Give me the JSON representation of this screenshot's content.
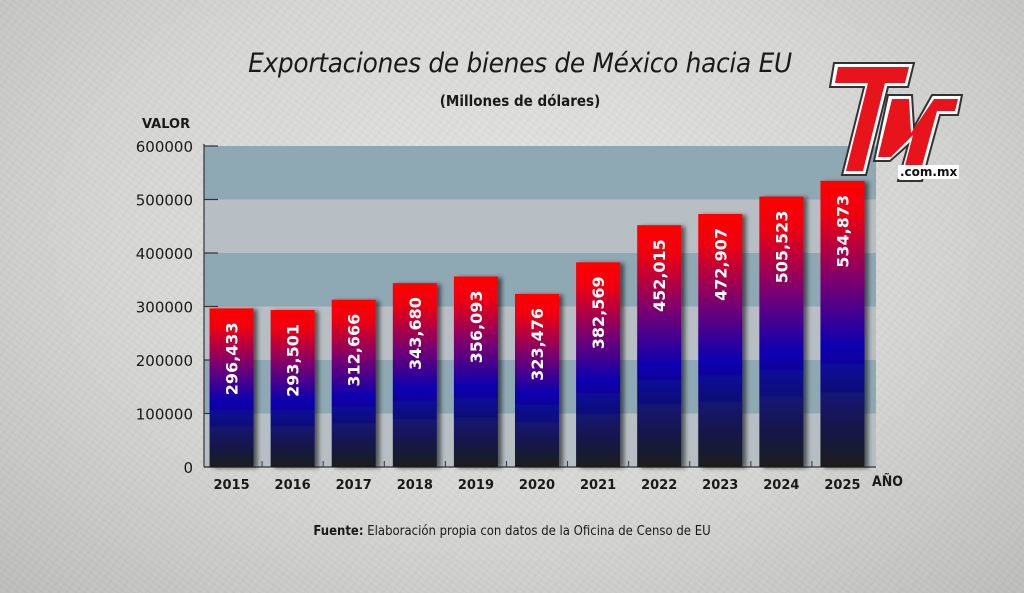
{
  "chart_data": {
    "type": "bar",
    "title": "Exportaciones de bienes de México hacia EU",
    "subtitle": "(Millones de dólares)",
    "xlabel": "AÑO",
    "ylabel": "VALOR",
    "categories": [
      "2015",
      "2016",
      "2017",
      "2018",
      "2019",
      "2020",
      "2021",
      "2022",
      "2023",
      "2024",
      "2025"
    ],
    "values": [
      296433,
      293501,
      312666,
      343680,
      356093,
      323476,
      382569,
      452015,
      472907,
      505523,
      534873
    ],
    "data_labels": [
      "296,433",
      "293,501",
      "312,666",
      "343,680",
      "356,093",
      "323,476",
      "382,569",
      "452,015",
      "472,907",
      "505,523",
      "534,873"
    ],
    "ylim": [
      0,
      600000
    ],
    "yticks": [
      0,
      100000,
      200000,
      300000,
      400000,
      500000,
      600000
    ],
    "ytick_labels": [
      "0",
      "100000",
      "200000",
      "300000",
      "400000",
      "500000",
      "600000"
    ],
    "grid": "alternating horizontal bands",
    "legend": "none",
    "colors": {
      "bar_top": "#ff0000",
      "bar_mid": "#0000b8",
      "bar_bottom": "#1c1c1c",
      "band_dark": "#8ea8b4",
      "band_light": "#b7bfc4",
      "label_text": "#ffffff"
    }
  },
  "source": {
    "label": "Fuente:",
    "text": " Elaboración propia con datos de la Oficina de Censo de EU"
  },
  "logo": {
    "text": "TyT",
    "domain": ".com.mx",
    "color": "#e8141c"
  }
}
